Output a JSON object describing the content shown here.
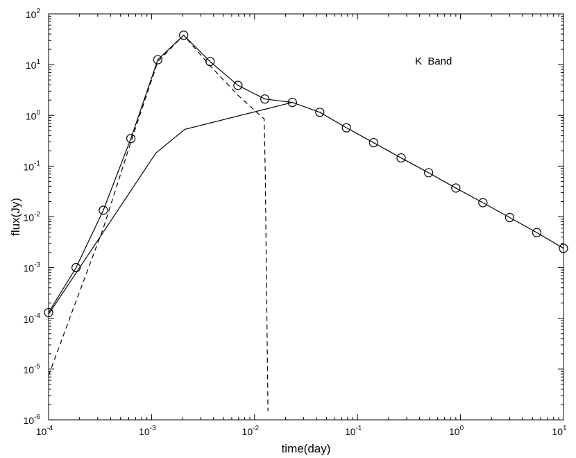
{
  "chart_data": {
    "type": "line",
    "title": "",
    "xlabel": "time(day)",
    "ylabel": "flux(Jy)",
    "xscale": "log",
    "yscale": "log",
    "xlim": [
      0.0001,
      10
    ],
    "ylim": [
      1e-06,
      100
    ],
    "grid": false,
    "legend": "none",
    "annotation": "K  Band",
    "x_ticks": [
      {
        "value": 0.0001,
        "base": "10",
        "exp": "-4"
      },
      {
        "value": 0.001,
        "base": "10",
        "exp": "-3"
      },
      {
        "value": 0.01,
        "base": "10",
        "exp": "-2"
      },
      {
        "value": 0.1,
        "base": "10",
        "exp": "-1"
      },
      {
        "value": 1,
        "base": "10",
        "exp": "0"
      },
      {
        "value": 10,
        "base": "10",
        "exp": "1"
      }
    ],
    "y_ticks": [
      {
        "value": 1e-06,
        "base": "10",
        "exp": "-6"
      },
      {
        "value": 1e-05,
        "base": "10",
        "exp": "-5"
      },
      {
        "value": 0.0001,
        "base": "10",
        "exp": "-4"
      },
      {
        "value": 0.001,
        "base": "10",
        "exp": "-3"
      },
      {
        "value": 0.01,
        "base": "10",
        "exp": "-2"
      },
      {
        "value": 0.1,
        "base": "10",
        "exp": "-1"
      },
      {
        "value": 1,
        "base": "10",
        "exp": "0"
      },
      {
        "value": 10,
        "base": "10",
        "exp": "1"
      },
      {
        "value": 100,
        "base": "10",
        "exp": "2"
      }
    ],
    "series": [
      {
        "style": "solid",
        "marker": "circle",
        "x": [
          0.0001,
          0.000185,
          0.00034,
          0.00063,
          0.00115,
          0.00205,
          0.0037,
          0.0069,
          0.0126,
          0.0233,
          0.043,
          0.078,
          0.143,
          0.265,
          0.49,
          0.9,
          1.65,
          3.0,
          5.5,
          10
        ],
        "y": [
          0.00013,
          0.001,
          0.0135,
          0.35,
          12.5,
          38,
          11.5,
          3.9,
          2.1,
          1.8,
          1.15,
          0.57,
          0.29,
          0.145,
          0.074,
          0.037,
          0.019,
          0.0097,
          0.0049,
          0.0024
        ]
      },
      {
        "style": "dashed",
        "marker": "none",
        "x": [
          0.0001,
          0.000185,
          0.00034,
          0.00063,
          0.00115,
          0.00205,
          0.0037,
          0.0069,
          0.0124,
          0.0127,
          0.0135
        ],
        "y": [
          7.5e-06,
          0.00022,
          0.006,
          0.3,
          11.5,
          38,
          9.5,
          2.5,
          0.85,
          0.08,
          1.5e-06
        ]
      },
      {
        "style": "solid",
        "marker": "none",
        "x": [
          0.0001,
          0.0011,
          0.0021,
          0.0233
        ],
        "y": [
          0.00012,
          0.18,
          0.53,
          1.8
        ]
      }
    ]
  }
}
